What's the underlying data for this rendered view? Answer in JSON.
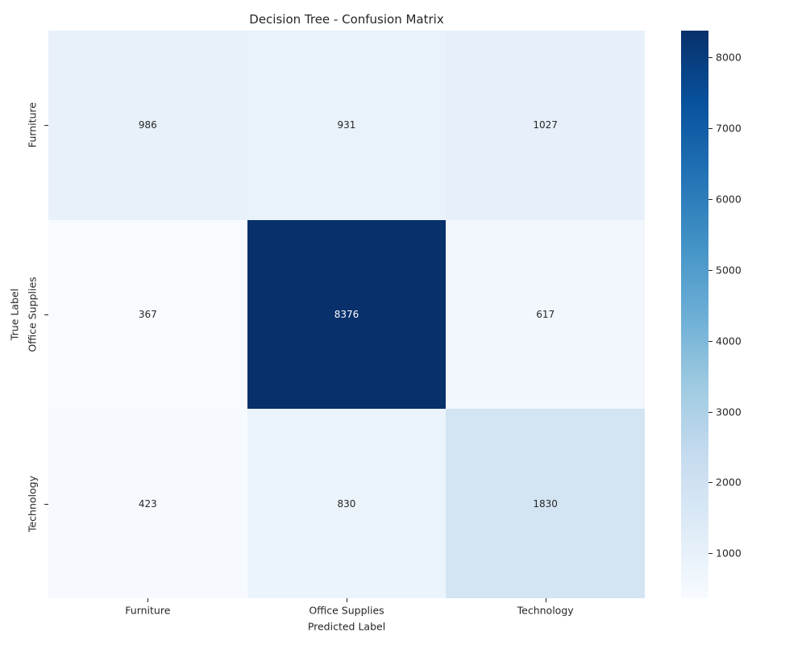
{
  "title": "Decision Tree - Confusion Matrix",
  "chart_data": {
    "type": "heatmap",
    "title": "Decision Tree - Confusion Matrix",
    "xlabel": "Predicted Label",
    "ylabel": "True Label",
    "x_categories": [
      "Furniture",
      "Office Supplies",
      "Technology"
    ],
    "y_categories": [
      "Furniture",
      "Office Supplies",
      "Technology"
    ],
    "matrix": [
      [
        986,
        931,
        1027
      ],
      [
        367,
        8376,
        617
      ],
      [
        423,
        830,
        1830
      ]
    ],
    "vmin": 367,
    "vmax": 8376,
    "colormap": "Blues",
    "colormap_stops": [
      "#f7fbff",
      "#deebf7",
      "#c6dbef",
      "#9ecae1",
      "#6baed6",
      "#4292c6",
      "#2171b5",
      "#08519c",
      "#08306b"
    ],
    "colorbar_ticks": [
      1000,
      2000,
      3000,
      4000,
      5000,
      6000,
      7000,
      8000
    ],
    "annotation_color_light": "#ffffff",
    "annotation_color_dark": "#262626",
    "legend_position": "right-colorbar",
    "grid": false
  }
}
